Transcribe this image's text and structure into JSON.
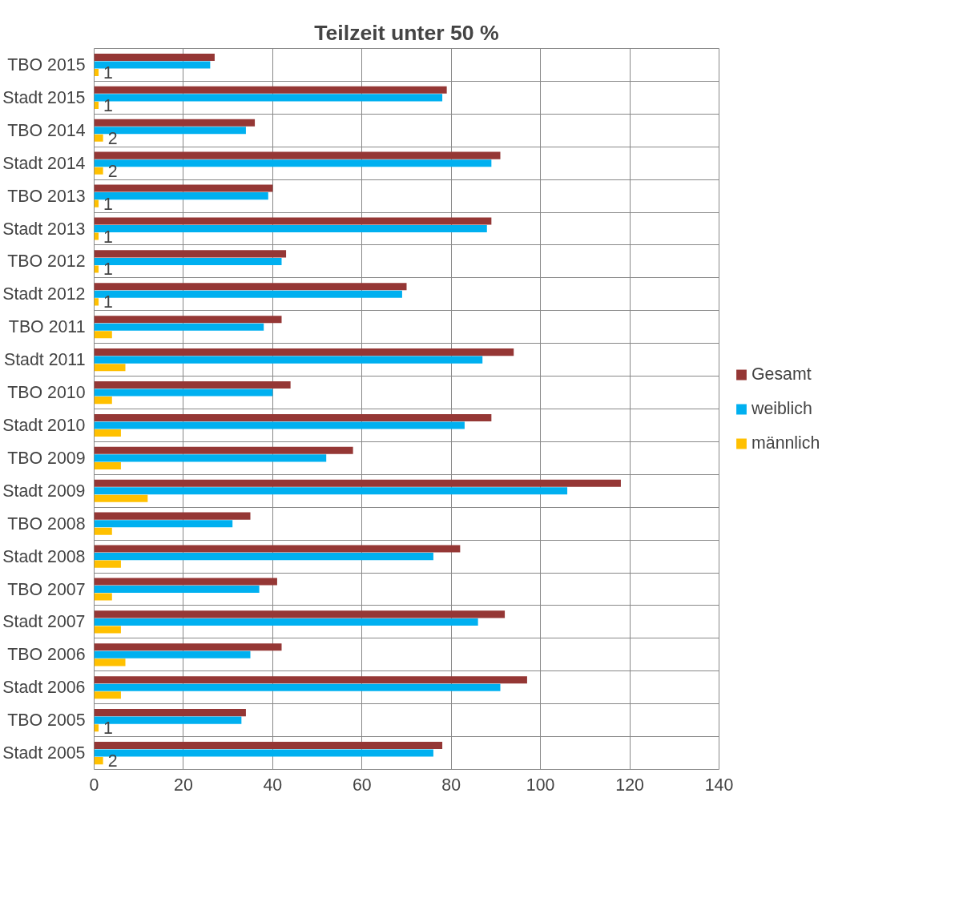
{
  "chart_data": {
    "type": "bar",
    "orientation": "horizontal",
    "title": "Teilzeit unter 50 %",
    "categories": [
      "TBO 2015",
      "Stadt 2015",
      "TBO 2014",
      "Stadt 2014",
      "TBO 2013",
      "Stadt 2013",
      "TBO 2012",
      "Stadt 2012",
      "TBO 2011",
      "Stadt 2011",
      "TBO 2010",
      "Stadt 2010",
      "TBO 2009",
      "Stadt 2009",
      "TBO 2008",
      "Stadt 2008",
      "TBO 2007",
      "Stadt 2007",
      "TBO 2006",
      "Stadt 2006",
      "TBO 2005",
      "Stadt 2005"
    ],
    "series": [
      {
        "name": "Gesamt",
        "color": "#953735",
        "values": [
          27,
          79,
          36,
          91,
          40,
          89,
          43,
          70,
          42,
          94,
          44,
          89,
          58,
          118,
          35,
          82,
          41,
          92,
          42,
          97,
          34,
          78
        ]
      },
      {
        "name": "weiblich",
        "color": "#00b0f0",
        "values": [
          26,
          78,
          34,
          89,
          39,
          88,
          42,
          69,
          38,
          87,
          40,
          83,
          52,
          106,
          31,
          76,
          37,
          86,
          35,
          91,
          33,
          76
        ]
      },
      {
        "name": "männlich",
        "color": "#ffc000",
        "values": [
          1,
          1,
          2,
          2,
          1,
          1,
          1,
          1,
          4,
          7,
          4,
          6,
          6,
          12,
          4,
          6,
          4,
          6,
          7,
          6,
          1,
          2
        ],
        "value_labels": [
          "1",
          "1",
          "2",
          "2",
          "1",
          "1",
          "1",
          "1",
          null,
          null,
          null,
          null,
          null,
          null,
          null,
          null,
          null,
          null,
          null,
          null,
          "1",
          "2"
        ]
      }
    ],
    "xlim": [
      0,
      140
    ],
    "xticks": [
      0,
      20,
      40,
      60,
      80,
      100,
      120,
      140
    ],
    "grid": true,
    "legend": "right"
  }
}
